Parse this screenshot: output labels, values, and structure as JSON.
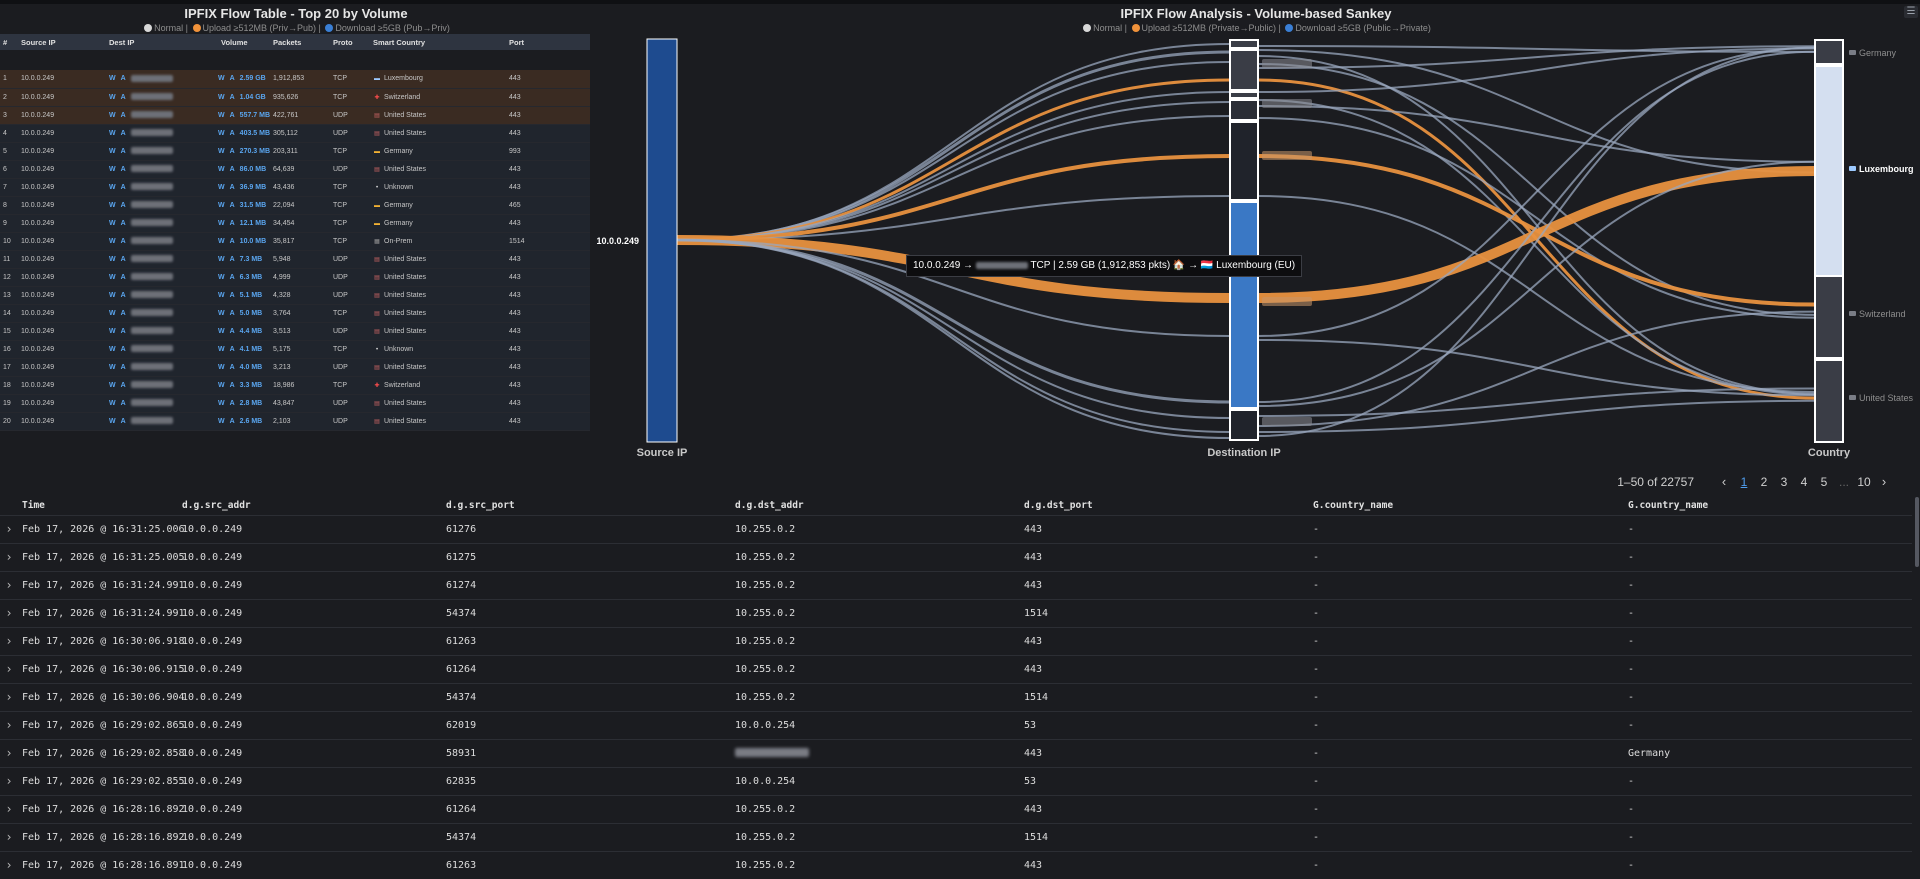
{
  "flow_table": {
    "title": "IPFIX Flow Table - Top 20 by Volume",
    "legend": {
      "normal": "Normal |",
      "upload": "Upload ≥512MB (Priv→Pub) |",
      "download": "Download ≥5GB (Pub→Priv)"
    },
    "columns": [
      "#",
      "Source IP",
      "Dest IP",
      "Volume",
      "Packets",
      "Proto",
      "Smart Country",
      "Port"
    ],
    "wa_label_w": "W",
    "wa_label_a": "A",
    "rows": [
      {
        "n": "1",
        "src": "10.0.0.249",
        "volume": "2.59 GB",
        "packets": "1,912,853",
        "proto": "TCP",
        "flag": "lu",
        "country": "Luxembourg",
        "port": "443",
        "style": "hl"
      },
      {
        "n": "2",
        "src": "10.0.0.249",
        "volume": "1.04 GB",
        "packets": "935,626",
        "proto": "TCP",
        "flag": "ch",
        "country": "Switzerland",
        "port": "443",
        "style": "hl"
      },
      {
        "n": "3",
        "src": "10.0.0.249",
        "volume": "557.7 MB",
        "packets": "422,761",
        "proto": "UDP",
        "flag": "us",
        "country": "United States",
        "port": "443",
        "style": "hl"
      },
      {
        "n": "4",
        "src": "10.0.0.249",
        "volume": "403.5 MB",
        "packets": "305,112",
        "proto": "UDP",
        "flag": "us",
        "country": "United States",
        "port": "443",
        "style": "norm"
      },
      {
        "n": "5",
        "src": "10.0.0.249",
        "volume": "270.3 MB",
        "packets": "203,311",
        "proto": "TCP",
        "flag": "de",
        "country": "Germany",
        "port": "993",
        "style": "norm"
      },
      {
        "n": "6",
        "src": "10.0.0.249",
        "volume": "86.0 MB",
        "packets": "64,639",
        "proto": "UDP",
        "flag": "us",
        "country": "United States",
        "port": "443",
        "style": "norm"
      },
      {
        "n": "7",
        "src": "10.0.0.249",
        "volume": "36.9 MB",
        "packets": "43,436",
        "proto": "TCP",
        "flag": "un",
        "country": "Unknown",
        "port": "443",
        "style": "norm"
      },
      {
        "n": "8",
        "src": "10.0.0.249",
        "volume": "31.5 MB",
        "packets": "22,094",
        "proto": "TCP",
        "flag": "de",
        "country": "Germany",
        "port": "465",
        "style": "norm"
      },
      {
        "n": "9",
        "src": "10.0.0.249",
        "volume": "12.1 MB",
        "packets": "34,454",
        "proto": "TCP",
        "flag": "de",
        "country": "Germany",
        "port": "443",
        "style": "norm"
      },
      {
        "n": "10",
        "src": "10.0.0.249",
        "volume": "10.0 MB",
        "packets": "35,817",
        "proto": "TCP",
        "flag": "op",
        "country": "On-Prem",
        "port": "1514",
        "style": "norm"
      },
      {
        "n": "11",
        "src": "10.0.0.249",
        "volume": "7.3 MB",
        "packets": "5,948",
        "proto": "UDP",
        "flag": "us",
        "country": "United States",
        "port": "443",
        "style": "norm"
      },
      {
        "n": "12",
        "src": "10.0.0.249",
        "volume": "6.3 MB",
        "packets": "4,999",
        "proto": "UDP",
        "flag": "us",
        "country": "United States",
        "port": "443",
        "style": "norm"
      },
      {
        "n": "13",
        "src": "10.0.0.249",
        "volume": "5.1 MB",
        "packets": "4,328",
        "proto": "UDP",
        "flag": "us",
        "country": "United States",
        "port": "443",
        "style": "norm"
      },
      {
        "n": "14",
        "src": "10.0.0.249",
        "volume": "5.0 MB",
        "packets": "3,764",
        "proto": "TCP",
        "flag": "us",
        "country": "United States",
        "port": "443",
        "style": "norm"
      },
      {
        "n": "15",
        "src": "10.0.0.249",
        "volume": "4.4 MB",
        "packets": "3,513",
        "proto": "UDP",
        "flag": "us",
        "country": "United States",
        "port": "443",
        "style": "norm"
      },
      {
        "n": "16",
        "src": "10.0.0.249",
        "volume": "4.1 MB",
        "packets": "5,175",
        "proto": "TCP",
        "flag": "un",
        "country": "Unknown",
        "port": "443",
        "style": "norm"
      },
      {
        "n": "17",
        "src": "10.0.0.249",
        "volume": "4.0 MB",
        "packets": "3,213",
        "proto": "UDP",
        "flag": "us",
        "country": "United States",
        "port": "443",
        "style": "norm"
      },
      {
        "n": "18",
        "src": "10.0.0.249",
        "volume": "3.3 MB",
        "packets": "18,986",
        "proto": "TCP",
        "flag": "ch",
        "country": "Switzerland",
        "port": "443",
        "style": "norm"
      },
      {
        "n": "19",
        "src": "10.0.0.249",
        "volume": "2.8 MB",
        "packets": "43,847",
        "proto": "UDP",
        "flag": "us",
        "country": "United States",
        "port": "443",
        "style": "norm"
      },
      {
        "n": "20",
        "src": "10.0.0.249",
        "volume": "2.6 MB",
        "packets": "2,103",
        "proto": "UDP",
        "flag": "us",
        "country": "United States",
        "port": "443",
        "style": "norm"
      }
    ]
  },
  "sankey": {
    "title": "IPFIX Flow Analysis - Volume-based Sankey",
    "legend": {
      "normal": "Normal |",
      "upload": "Upload ≥512MB (Private→Public) |",
      "download": "Download ≥5GB (Public→Private)"
    },
    "axis_labels": {
      "source": "Source IP",
      "destination": "Destination IP",
      "country": "Country"
    },
    "source_node": "10.0.0.249",
    "country_nodes": [
      "Germany",
      "Luxembourg",
      "Switzerland",
      "United States"
    ],
    "tooltip": {
      "prefix": "10.0.0.249 →",
      "suffix": "TCP | 2.59 GB (1,912,853 pkts) 🏠 → 🇱🇺 Luxembourg (EU)"
    }
  },
  "colors": {
    "normal": "#d8d8d8",
    "upload": "#f0923a",
    "download": "#3a7fd5",
    "link_normal": "#9aa7bd",
    "link_upload": "#e8913f",
    "source_node": "#1e4b8f"
  },
  "discover": {
    "pagination": {
      "range": "1–50 of 22757",
      "pages": [
        "1",
        "2",
        "3",
        "4",
        "5",
        "...",
        "10"
      ],
      "active_page": "1"
    },
    "columns": [
      "Time",
      "d.g.src_addr",
      "d.g.src_port",
      "d.g.dst_addr",
      "d.g.dst_port",
      "G.country_name",
      "G.country_name"
    ],
    "rows": [
      {
        "time": "Feb 17, 2026 @ 16:31:25.006",
        "src_addr": "10.0.0.249",
        "src_port": "61276",
        "dst_addr": "10.255.0.2",
        "dst_port": "443",
        "country1": "-",
        "country2": "-"
      },
      {
        "time": "Feb 17, 2026 @ 16:31:25.005",
        "src_addr": "10.0.0.249",
        "src_port": "61275",
        "dst_addr": "10.255.0.2",
        "dst_port": "443",
        "country1": "-",
        "country2": "-"
      },
      {
        "time": "Feb 17, 2026 @ 16:31:24.991",
        "src_addr": "10.0.0.249",
        "src_port": "61274",
        "dst_addr": "10.255.0.2",
        "dst_port": "443",
        "country1": "-",
        "country2": "-"
      },
      {
        "time": "Feb 17, 2026 @ 16:31:24.991",
        "src_addr": "10.0.0.249",
        "src_port": "54374",
        "dst_addr": "10.255.0.2",
        "dst_port": "1514",
        "country1": "-",
        "country2": "-"
      },
      {
        "time": "Feb 17, 2026 @ 16:30:06.918",
        "src_addr": "10.0.0.249",
        "src_port": "61263",
        "dst_addr": "10.255.0.2",
        "dst_port": "443",
        "country1": "-",
        "country2": "-"
      },
      {
        "time": "Feb 17, 2026 @ 16:30:06.915",
        "src_addr": "10.0.0.249",
        "src_port": "61264",
        "dst_addr": "10.255.0.2",
        "dst_port": "443",
        "country1": "-",
        "country2": "-"
      },
      {
        "time": "Feb 17, 2026 @ 16:30:06.904",
        "src_addr": "10.0.0.249",
        "src_port": "54374",
        "dst_addr": "10.255.0.2",
        "dst_port": "1514",
        "country1": "-",
        "country2": "-"
      },
      {
        "time": "Feb 17, 2026 @ 16:29:02.865",
        "src_addr": "10.0.0.249",
        "src_port": "62019",
        "dst_addr": "10.0.0.254",
        "dst_port": "53",
        "country1": "-",
        "country2": "-"
      },
      {
        "time": "Feb 17, 2026 @ 16:29:02.858",
        "src_addr": "10.0.0.249",
        "src_port": "58931",
        "dst_addr": "",
        "dst_port": "443",
        "country1": "-",
        "country2": "Germany",
        "blur_dst": true
      },
      {
        "time": "Feb 17, 2026 @ 16:29:02.855",
        "src_addr": "10.0.0.249",
        "src_port": "62835",
        "dst_addr": "10.0.0.254",
        "dst_port": "53",
        "country1": "-",
        "country2": "-"
      },
      {
        "time": "Feb 17, 2026 @ 16:28:16.892",
        "src_addr": "10.0.0.249",
        "src_port": "61264",
        "dst_addr": "10.255.0.2",
        "dst_port": "443",
        "country1": "-",
        "country2": "-"
      },
      {
        "time": "Feb 17, 2026 @ 16:28:16.892",
        "src_addr": "10.0.0.249",
        "src_port": "54374",
        "dst_addr": "10.255.0.2",
        "dst_port": "1514",
        "country1": "-",
        "country2": "-"
      },
      {
        "time": "Feb 17, 2026 @ 16:28:16.891",
        "src_addr": "10.0.0.249",
        "src_port": "61263",
        "dst_addr": "10.255.0.2",
        "dst_port": "443",
        "country1": "-",
        "country2": "-"
      }
    ]
  }
}
